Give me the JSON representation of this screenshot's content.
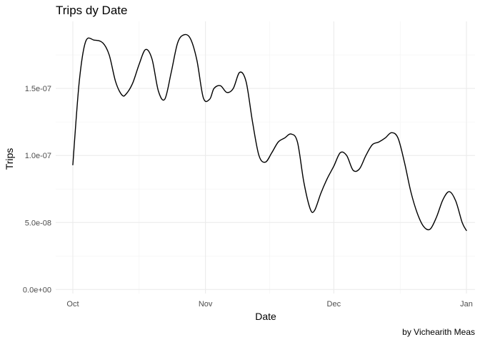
{
  "chart_data": {
    "type": "line",
    "title": "Trips dy Date",
    "xlabel": "Date",
    "ylabel": "Trips",
    "caption": "by Vichearith Meas",
    "grid": true,
    "legend": "none",
    "x_is_date": true,
    "x_unit": "day of year 2014",
    "xlim": [
      270,
      368
    ],
    "ylim": [
      -3e-09,
      2e-07
    ],
    "x_ticks": [
      {
        "value": 274,
        "label": "Oct"
      },
      {
        "value": 305,
        "label": "Nov"
      },
      {
        "value": 335,
        "label": "Dec"
      },
      {
        "value": 366,
        "label": "Jan"
      }
    ],
    "x_minor_ticks": [
      289.5,
      320,
      350.5
    ],
    "y_ticks": [
      {
        "value": 0,
        "label": "0.0e+00"
      },
      {
        "value": 5e-08,
        "label": "5.0e-08"
      },
      {
        "value": 1e-07,
        "label": "1.0e-07"
      },
      {
        "value": 1.5e-07,
        "label": "1.5e-07"
      }
    ],
    "y_minor_ticks": [
      2.5e-08,
      7.5e-08,
      1.25e-07,
      1.75e-07
    ],
    "series": [
      {
        "name": "Trips",
        "color": "#000000",
        "x": [
          274,
          275.5,
          277,
          279,
          281,
          282.5,
          284,
          285.5,
          286.5,
          288,
          289.5,
          291,
          292.5,
          294,
          295.5,
          297,
          298.5,
          300,
          301.5,
          303,
          304.5,
          306,
          307,
          308.5,
          310,
          311.5,
          313,
          314.5,
          316,
          317.5,
          319,
          320.5,
          322,
          323.5,
          325,
          326.5,
          328,
          329.5,
          330.5,
          332,
          333.5,
          335,
          336.5,
          338,
          339.5,
          341,
          342.5,
          344,
          345.5,
          347,
          348.5,
          350,
          351.5,
          353,
          354.5,
          356,
          357.5,
          359,
          360.5,
          362,
          363.5,
          365,
          366
        ],
        "values": [
          9.3e-08,
          1.55e-07,
          1.85e-07,
          1.86e-07,
          1.84e-07,
          1.75e-07,
          1.55e-07,
          1.45e-07,
          1.46e-07,
          1.54e-07,
          1.68e-07,
          1.79e-07,
          1.72e-07,
          1.48e-07,
          1.42e-07,
          1.62e-07,
          1.84e-07,
          1.9e-07,
          1.87e-07,
          1.71e-07,
          1.43e-07,
          1.42e-07,
          1.5e-07,
          1.52e-07,
          1.47e-07,
          1.5e-07,
          1.62e-07,
          1.55e-07,
          1.25e-07,
          1e-07,
          9.5e-08,
          1.02e-07,
          1.1e-07,
          1.13e-07,
          1.16e-07,
          1.1e-07,
          8e-08,
          6e-08,
          5.9e-08,
          7.2e-08,
          8.3e-08,
          9.2e-08,
          1.02e-07,
          1e-07,
          8.9e-08,
          9e-08,
          1e-07,
          1.08e-07,
          1.1e-07,
          1.13e-07,
          1.17e-07,
          1.13e-07,
          9.5e-08,
          7.3e-08,
          5.7e-08,
          4.7e-08,
          4.5e-08,
          5.4e-08,
          6.7e-08,
          7.3e-08,
          6.6e-08,
          5e-08,
          4.4e-08
        ]
      }
    ]
  }
}
